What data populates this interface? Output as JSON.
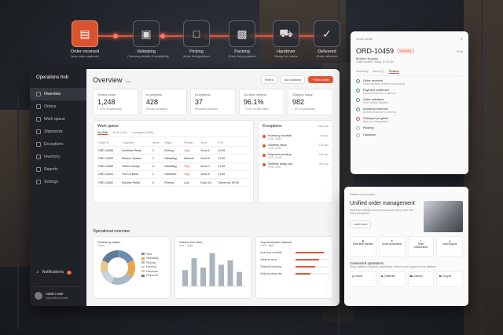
{
  "pipeline": [
    {
      "title": "Order received",
      "sub": "New order captured",
      "active": true,
      "icon": "document-icon"
    },
    {
      "title": "Validating",
      "sub": "Checking details & availability",
      "active": false,
      "icon": "cube-check-icon"
    },
    {
      "title": "Picking",
      "sub": "Items being picked",
      "active": false,
      "icon": "box-icon"
    },
    {
      "title": "Packing",
      "sub": "Order being packed",
      "active": false,
      "icon": "package-icon"
    },
    {
      "title": "Handover",
      "sub": "Ready for carrier",
      "active": false,
      "icon": "truck-icon"
    },
    {
      "title": "Delivered",
      "sub": "Order delivered",
      "active": false,
      "icon": "check-icon"
    }
  ],
  "sidebar": {
    "brand": "Operations hub",
    "items": [
      {
        "label": "Overview",
        "selected": true
      },
      {
        "label": "Orders",
        "selected": false
      },
      {
        "label": "Work queue",
        "selected": false
      },
      {
        "label": "Shipments",
        "selected": false
      },
      {
        "label": "Exceptions",
        "selected": false
      },
      {
        "label": "Inventory",
        "selected": false
      },
      {
        "label": "Reports",
        "selected": false
      },
      {
        "label": "Settings",
        "selected": false
      }
    ],
    "notifications_label": "Notifications",
    "notifications_count": "3",
    "user_name": "Admin user",
    "user_role": "Operations lead"
  },
  "header": {
    "title": "Overview",
    "sub": "Live",
    "filters": "Filters",
    "range": "All locations",
    "new_order": "+ New order"
  },
  "kpis": [
    {
      "label": "Orders today",
      "value": "1,248",
      "delta": "↑ 12% vs yesterday"
    },
    {
      "label": "In progress",
      "value": "428",
      "delta": "Across all stages"
    },
    {
      "label": "Exceptions",
      "value": "37",
      "delta": "Requires attention"
    },
    {
      "label": "On-time delivery",
      "value": "96.1%",
      "delta": "↑ 2.4% vs last week"
    },
    {
      "label": "Shipped today",
      "value": "982",
      "delta": "↑ 8% vs yesterday"
    }
  ],
  "workqueue": {
    "title": "Work queue",
    "tabs": [
      "All (428)",
      "To do (192)",
      "In progress (236)"
    ],
    "columns": [
      "Order ID",
      "Customer",
      "Items",
      "Stage",
      "Priority",
      "Zone",
      "ETA"
    ],
    "rows": [
      [
        "ORD-10458",
        "Northline Retail",
        "3",
        "Picking",
        "High",
        "Zone A",
        "10:45"
      ],
      [
        "ORD-10459",
        "Modern Spaces",
        "2",
        "Validating",
        "Medium",
        "Zone B",
        "11:20"
      ],
      [
        "ORD-10460",
        "Haven Design",
        "4",
        "Validating",
        "High",
        "Zone C",
        "11:35"
      ],
      [
        "ORD-10461",
        "Form & Build",
        "1",
        "Handover",
        "High",
        "Zone A",
        "11:50"
      ],
      [
        "ORD-10462",
        "Epicline Retail",
        "5",
        "Picking",
        "Low",
        "Dock 1A",
        "Tomorrow, 09:00"
      ]
    ]
  },
  "exceptions": {
    "title": "Exceptions",
    "view_all": "View all",
    "items": [
      {
        "title": "Inventory shortfall",
        "sub": "ORD-10455",
        "age": "5m ago"
      },
      {
        "title": "Address issue",
        "sub": "ORD-10450",
        "age": "12m ago"
      },
      {
        "title": "Payment pending",
        "sub": "ORD-10448",
        "age": "18m ago"
      },
      {
        "title": "Delivery delay risk",
        "sub": "ORD-10441",
        "age": "25m ago"
      }
    ]
  },
  "operational": {
    "title": "Operational overview",
    "donut_title": "Orders by status",
    "donut_sub": "Today",
    "status": [
      {
        "name": "New",
        "value": 18,
        "color": "#6b8fb3"
      },
      {
        "name": "Validating",
        "value": 16,
        "color": "#e8a54b"
      },
      {
        "name": "Picking",
        "value": 22,
        "color": "#a9b7c6"
      },
      {
        "name": "Packing",
        "value": 14,
        "color": "#c9d4de"
      },
      {
        "name": "Handover",
        "value": 12,
        "color": "#e7c98d"
      },
      {
        "name": "Delivered",
        "value": 18,
        "color": "#5a7c99"
      }
    ],
    "volume_title": "Orders over time",
    "volume_sub": "Last 7 days",
    "volume": [
      45,
      78,
      52,
      92,
      60,
      72,
      40
    ],
    "reasons_title": "Top exception reasons",
    "reasons_sub": "Last 7 days",
    "reasons": [
      {
        "label": "Inventory shortfall",
        "value": 85
      },
      {
        "label": "Address issue",
        "value": 70
      },
      {
        "label": "Payment pending",
        "value": 60
      },
      {
        "label": "Delivery delay risk",
        "value": 45
      }
    ]
  },
  "order_detail": {
    "header": "Order detail",
    "id": "ORD-10459",
    "status": "Validating",
    "print": "Print",
    "customer": "Modern Spaces",
    "meta": "Order created: Today, 10:42 AM",
    "tabs": [
      "Summary",
      "Items (2)",
      "Timeline"
    ],
    "timeline": [
      {
        "t": "Order received",
        "s": "Order has been received successfully",
        "kind": "done"
      },
      {
        "t": "Payment confirmed",
        "s": "Payment has been confirmed",
        "kind": "done"
      },
      {
        "t": "Order validated",
        "s": "Order details validated",
        "kind": "done"
      },
      {
        "t": "Inventory reserved",
        "s": "All items reserved in inventory",
        "kind": "done"
      },
      {
        "t": "Picking in progress",
        "s": "Items are being picked",
        "kind": "red"
      },
      {
        "t": "Packing",
        "s": "",
        "kind": "gray"
      },
      {
        "t": "Handover",
        "s": "",
        "kind": "gray"
      }
    ]
  },
  "platform": {
    "header": "Platform overview",
    "title": "Unified order management",
    "desc": "Real-time visibility and control across every order and every touchpoint.",
    "link": "Learn more",
    "features": [
      "Real-time visibility",
      "Smart automation",
      "Team collaboration",
      "Data insights"
    ],
    "connected_title": "Connected operations",
    "connected_desc": "Bring together inventory, warehouse, delivery and support in one platform.",
    "connected": [
      "Orders",
      "Fulfillment",
      "Delivery",
      "Support"
    ]
  }
}
